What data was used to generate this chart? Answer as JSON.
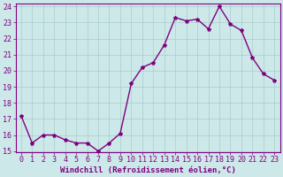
{
  "x": [
    0,
    1,
    2,
    3,
    4,
    5,
    6,
    7,
    8,
    9,
    10,
    11,
    12,
    13,
    14,
    15,
    16,
    17,
    18,
    19,
    20,
    21,
    22,
    23
  ],
  "y": [
    17.2,
    15.5,
    16.0,
    16.0,
    15.7,
    15.5,
    15.5,
    15.0,
    15.5,
    16.1,
    19.2,
    20.2,
    20.5,
    21.6,
    23.3,
    23.1,
    23.2,
    22.6,
    24.0,
    22.9,
    22.5,
    20.8,
    19.8,
    19.4
  ],
  "line_color": "#800080",
  "marker": "*",
  "marker_size": 3,
  "background_color": "#cce8e8",
  "grid_color": "#aacccc",
  "xlabel": "Windchill (Refroidissement éolien,°C)",
  "ylabel": "",
  "ylim": [
    15,
    24
  ],
  "xlim": [
    -0.5,
    23.5
  ],
  "yticks": [
    15,
    16,
    17,
    18,
    19,
    20,
    21,
    22,
    23,
    24
  ],
  "xticks": [
    0,
    1,
    2,
    3,
    4,
    5,
    6,
    7,
    8,
    9,
    10,
    11,
    12,
    13,
    14,
    15,
    16,
    17,
    18,
    19,
    20,
    21,
    22,
    23
  ],
  "label_fontsize": 6.5,
  "tick_fontsize": 6,
  "line_width": 1.0
}
